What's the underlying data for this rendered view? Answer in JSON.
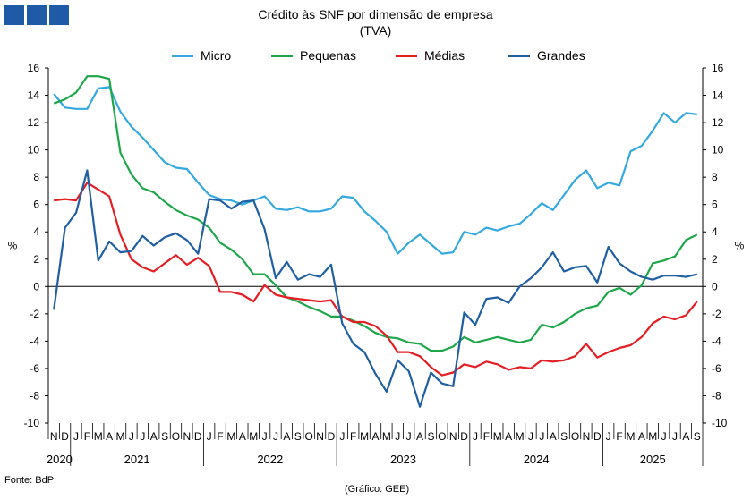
{
  "header": {
    "title": "Crédito às SNF por dimensão de empresa",
    "subtitle": "(TVA)"
  },
  "footer": {
    "source": "Fonte: BdP",
    "credit": "(Gráfico: GEE)"
  },
  "colors": {
    "Micro": "#35a9df",
    "Pequenas": "#1ea64a",
    "Médias": "#e31e24",
    "Grandes": "#1f5fa2",
    "logo": "#1f5aa6"
  },
  "chart_data": {
    "type": "line",
    "title": "Crédito às SNF por dimensão de empresa",
    "subtitle": "(TVA)",
    "ylabel": "%",
    "ylim": [
      -10,
      16
    ],
    "yticks": [
      -10,
      -8,
      -6,
      -4,
      -2,
      0,
      2,
      4,
      6,
      8,
      10,
      12,
      14,
      16
    ],
    "y2ticks": [
      -10,
      -8,
      -6,
      -4,
      -2,
      0,
      2,
      4,
      6,
      8,
      10,
      12,
      14,
      16
    ],
    "grid": false,
    "legend_position": "top-center",
    "x": [
      "2020-11",
      "2020-12",
      "2021-01",
      "2021-02",
      "2021-03",
      "2021-04",
      "2021-05",
      "2021-06",
      "2021-07",
      "2021-08",
      "2021-09",
      "2021-10",
      "2021-11",
      "2021-12",
      "2022-01",
      "2022-02",
      "2022-03",
      "2022-04",
      "2022-05",
      "2022-06",
      "2022-07",
      "2022-08",
      "2022-09",
      "2022-10",
      "2022-11",
      "2022-12",
      "2023-01",
      "2023-02",
      "2023-03",
      "2023-04",
      "2023-05",
      "2023-06",
      "2023-07",
      "2023-08",
      "2023-09",
      "2023-10",
      "2023-11",
      "2023-12",
      "2024-01",
      "2024-02",
      "2024-03",
      "2024-04",
      "2024-05",
      "2024-06",
      "2024-07",
      "2024-08",
      "2024-09",
      "2024-10",
      "2024-11",
      "2024-12",
      "2025-01",
      "2025-02",
      "2025-03",
      "2025-04",
      "2025-05",
      "2025-06",
      "2025-07",
      "2025-08",
      "2025-09"
    ],
    "month_labels": [
      "N",
      "D",
      "J",
      "F",
      "M",
      "A",
      "M",
      "J",
      "J",
      "A",
      "S",
      "O",
      "N",
      "D",
      "J",
      "F",
      "M",
      "A",
      "M",
      "J",
      "J",
      "A",
      "S",
      "O",
      "N",
      "D",
      "J",
      "F",
      "M",
      "A",
      "M",
      "J",
      "J",
      "A",
      "S",
      "O",
      "N",
      "D",
      "J",
      "F",
      "M",
      "A",
      "M",
      "J",
      "J",
      "A",
      "S",
      "O",
      "N",
      "D",
      "J",
      "F",
      "M",
      "A",
      "M",
      "J",
      "J",
      "A",
      "S"
    ],
    "years": [
      {
        "label": "2020",
        "start": 0,
        "count": 2
      },
      {
        "label": "2021",
        "start": 2,
        "count": 12
      },
      {
        "label": "2022",
        "start": 14,
        "count": 12
      },
      {
        "label": "2023",
        "start": 26,
        "count": 12
      },
      {
        "label": "2024",
        "start": 38,
        "count": 12
      },
      {
        "label": "2025",
        "start": 50,
        "count": 9
      }
    ],
    "series": [
      {
        "name": "Micro",
        "values": [
          14.1,
          13.1,
          13.0,
          13.0,
          14.5,
          14.6,
          12.8,
          11.7,
          10.9,
          10.0,
          9.1,
          8.7,
          8.6,
          7.6,
          6.7,
          6.4,
          6.3,
          6.0,
          6.3,
          6.6,
          5.7,
          5.6,
          5.8,
          5.5,
          5.5,
          5.7,
          6.6,
          6.5,
          5.5,
          4.8,
          4.0,
          2.4,
          3.2,
          3.8,
          3.1,
          2.4,
          2.5,
          4.0,
          3.8,
          4.3,
          4.1,
          4.4,
          4.6,
          5.3,
          6.1,
          5.6,
          6.7,
          7.8,
          8.5,
          7.2,
          7.6,
          7.4,
          9.9,
          10.3,
          11.4,
          12.7,
          12.0,
          12.7,
          12.6
        ]
      },
      {
        "name": "Pequenas",
        "values": [
          13.4,
          13.7,
          14.2,
          15.4,
          15.4,
          15.2,
          9.8,
          8.2,
          7.2,
          6.9,
          6.2,
          5.6,
          5.2,
          4.9,
          4.3,
          3.2,
          2.7,
          2.0,
          0.9,
          0.9,
          0.1,
          -0.8,
          -1.1,
          -1.5,
          -1.8,
          -2.2,
          -2.2,
          -2.5,
          -2.9,
          -3.4,
          -3.7,
          -3.8,
          -4.1,
          -4.2,
          -4.7,
          -4.7,
          -4.4,
          -3.7,
          -4.1,
          -3.9,
          -3.7,
          -3.9,
          -4.1,
          -3.9,
          -2.8,
          -3.0,
          -2.6,
          -2.0,
          -1.6,
          -1.4,
          -0.4,
          -0.1,
          -0.6,
          0.1,
          1.7,
          1.9,
          2.2,
          3.4,
          3.8
        ]
      },
      {
        "name": "Médias",
        "values": [
          6.3,
          6.4,
          6.3,
          7.6,
          7.1,
          6.6,
          3.8,
          2.0,
          1.4,
          1.1,
          1.7,
          2.3,
          1.6,
          2.1,
          1.5,
          -0.4,
          -0.4,
          -0.6,
          -1.1,
          0.1,
          -0.6,
          -0.8,
          -0.9,
          -1.0,
          -1.1,
          -1.0,
          -2.2,
          -2.6,
          -2.6,
          -2.9,
          -3.6,
          -4.8,
          -4.8,
          -5.1,
          -5.9,
          -6.5,
          -6.3,
          -5.7,
          -5.9,
          -5.5,
          -5.7,
          -6.1,
          -5.9,
          -6.0,
          -5.4,
          -5.5,
          -5.4,
          -5.1,
          -4.2,
          -5.2,
          -4.8,
          -4.5,
          -4.3,
          -3.7,
          -2.7,
          -2.2,
          -2.4,
          -2.1,
          -1.1
        ]
      },
      {
        "name": "Grandes",
        "values": [
          -1.7,
          4.3,
          5.4,
          8.5,
          1.9,
          3.3,
          2.5,
          2.6,
          3.7,
          3.0,
          3.6,
          3.9,
          3.4,
          2.4,
          6.4,
          6.3,
          5.7,
          6.2,
          6.3,
          4.2,
          0.6,
          1.8,
          0.5,
          0.9,
          0.7,
          1.6,
          -2.7,
          -4.2,
          -4.8,
          -6.4,
          -7.7,
          -5.4,
          -6.2,
          -8.8,
          -6.3,
          -7.1,
          -7.3,
          -1.9,
          -2.8,
          -0.9,
          -0.8,
          -1.2,
          0.0,
          0.6,
          1.4,
          2.5,
          1.1,
          1.4,
          1.5,
          0.3,
          2.9,
          1.7,
          1.1,
          0.7,
          0.5,
          0.8,
          0.8,
          0.7,
          0.9
        ]
      }
    ]
  }
}
